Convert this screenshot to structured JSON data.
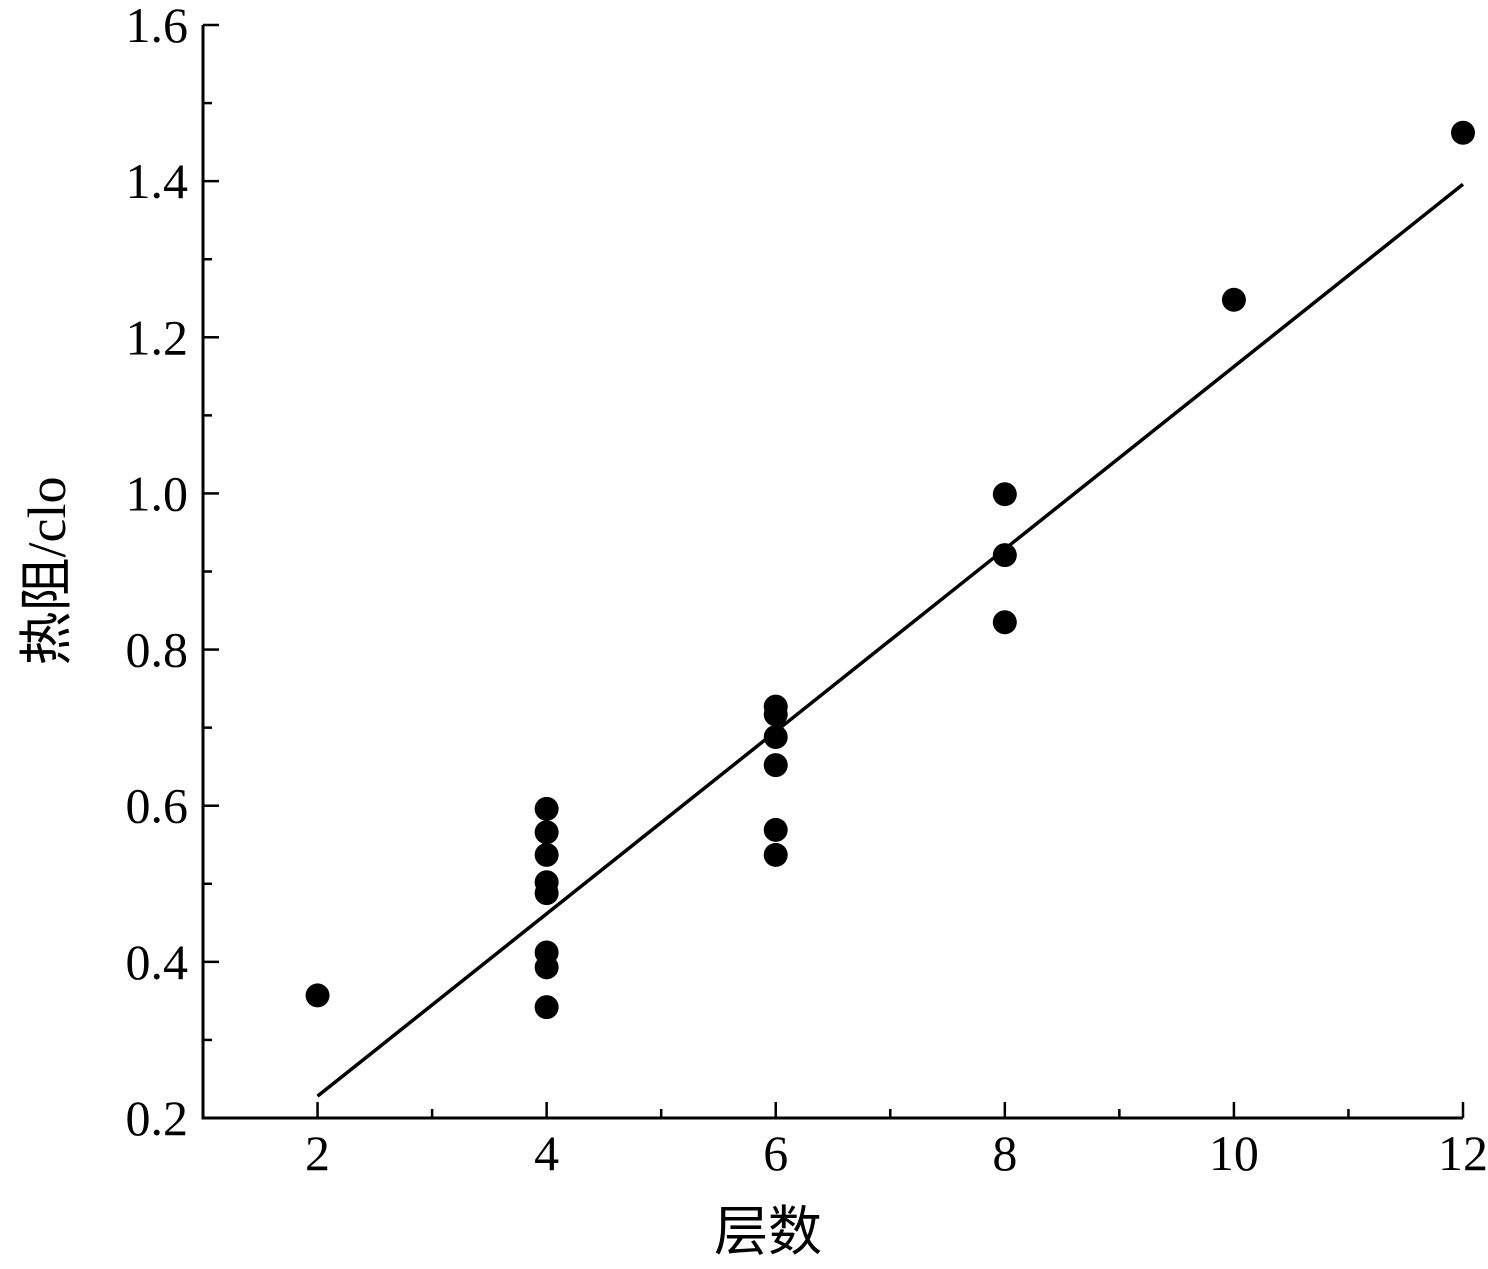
{
  "chart_data": {
    "type": "scatter",
    "title": "",
    "xlabel": "层数",
    "ylabel": "热阻/clo",
    "xlim": [
      1,
      12
    ],
    "ylim": [
      0.2,
      1.6
    ],
    "x_ticks": [
      "2",
      "4",
      "6",
      "8",
      "10",
      "12"
    ],
    "y_ticks": [
      "0.2",
      "0.4",
      "0.6",
      "0.8",
      "1.0",
      "1.2",
      "1.4",
      "1.6"
    ],
    "grid": false,
    "legend": "none",
    "marker_color": "#000000",
    "line_color": "#000000",
    "points": [
      {
        "x": 2,
        "y": 0.357
      },
      {
        "x": 4,
        "y": 0.596
      },
      {
        "x": 4,
        "y": 0.566
      },
      {
        "x": 4,
        "y": 0.537
      },
      {
        "x": 4,
        "y": 0.502
      },
      {
        "x": 4,
        "y": 0.488
      },
      {
        "x": 4,
        "y": 0.412
      },
      {
        "x": 4,
        "y": 0.393
      },
      {
        "x": 4,
        "y": 0.342
      },
      {
        "x": 6,
        "y": 0.727
      },
      {
        "x": 6,
        "y": 0.717
      },
      {
        "x": 6,
        "y": 0.688
      },
      {
        "x": 6,
        "y": 0.652
      },
      {
        "x": 6,
        "y": 0.569
      },
      {
        "x": 6,
        "y": 0.537
      },
      {
        "x": 8,
        "y": 0.999
      },
      {
        "x": 8,
        "y": 0.921
      },
      {
        "x": 8,
        "y": 0.835
      },
      {
        "x": 10,
        "y": 1.248
      },
      {
        "x": 12,
        "y": 1.462
      }
    ],
    "fit_line": {
      "x": [
        2,
        12
      ],
      "y": [
        0.228,
        1.396
      ]
    }
  }
}
